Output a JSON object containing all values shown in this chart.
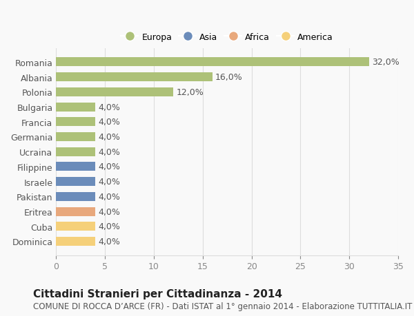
{
  "categories": [
    "Romania",
    "Albania",
    "Polonia",
    "Bulgaria",
    "Francia",
    "Germania",
    "Ucraina",
    "Filippine",
    "Israele",
    "Pakistan",
    "Eritrea",
    "Cuba",
    "Dominica"
  ],
  "values": [
    32.0,
    16.0,
    12.0,
    4.0,
    4.0,
    4.0,
    4.0,
    4.0,
    4.0,
    4.0,
    4.0,
    4.0,
    4.0
  ],
  "bar_colors": [
    "#adc178",
    "#adc178",
    "#adc178",
    "#adc178",
    "#adc178",
    "#adc178",
    "#adc178",
    "#6b8cba",
    "#6b8cba",
    "#6b8cba",
    "#e8a87c",
    "#f5d07a",
    "#f5d07a"
  ],
  "legend_labels": [
    "Europa",
    "Asia",
    "Africa",
    "America"
  ],
  "legend_colors": [
    "#adc178",
    "#6b8cba",
    "#e8a87c",
    "#f5d07a"
  ],
  "title": "Cittadini Stranieri per Cittadinanza - 2014",
  "subtitle": "COMUNE DI ROCCA D’ARCE (FR) - Dati ISTAT al 1° gennaio 2014 - Elaborazione TUTTITALIA.IT",
  "xlim": [
    0,
    35
  ],
  "xticks": [
    0,
    5,
    10,
    15,
    20,
    25,
    30,
    35
  ],
  "background_color": "#f9f9f9",
  "grid_color": "#dddddd",
  "bar_height": 0.6,
  "label_fontsize": 9,
  "title_fontsize": 11,
  "subtitle_fontsize": 8.5,
  "tick_label_fontsize": 9,
  "value_label_color": "#555555"
}
